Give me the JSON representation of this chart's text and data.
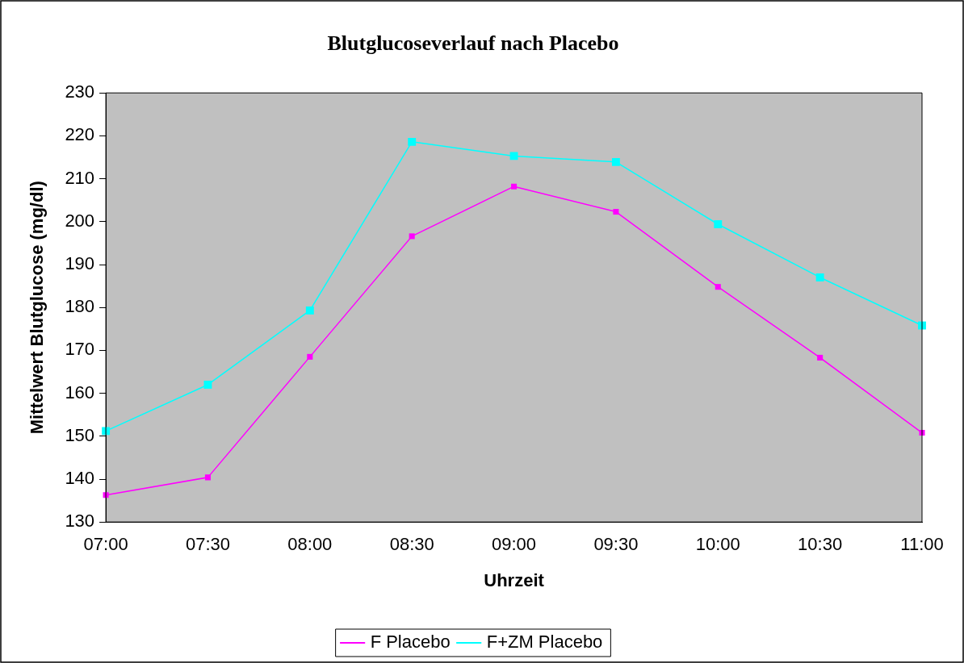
{
  "chart_data": {
    "type": "line",
    "title": "Blutglucoseverlauf nach Placebo",
    "xlabel": "Uhrzeit",
    "ylabel": "Mittelwert Blutglucose (mg/dl)",
    "categories": [
      "07:00",
      "07:30",
      "08:00",
      "08:30",
      "09:00",
      "09:30",
      "10:00",
      "10:30",
      "11:00"
    ],
    "series": [
      {
        "name": "F Placebo",
        "color": "#ff00ff",
        "values": [
          136.3,
          140.4,
          168.5,
          196.6,
          208.2,
          202.3,
          184.8,
          168.3,
          150.8
        ]
      },
      {
        "name": "F+ZM Placebo",
        "color": "#00ffff",
        "values": [
          151.2,
          162.0,
          179.3,
          218.6,
          215.3,
          213.9,
          199.4,
          187.0,
          175.8
        ]
      }
    ],
    "ylim": [
      130,
      230
    ],
    "yticks": [
      130,
      140,
      150,
      160,
      170,
      180,
      190,
      200,
      210,
      220,
      230
    ],
    "grid": false,
    "legend": "bottom",
    "marker": "square",
    "line_style": "solid"
  }
}
